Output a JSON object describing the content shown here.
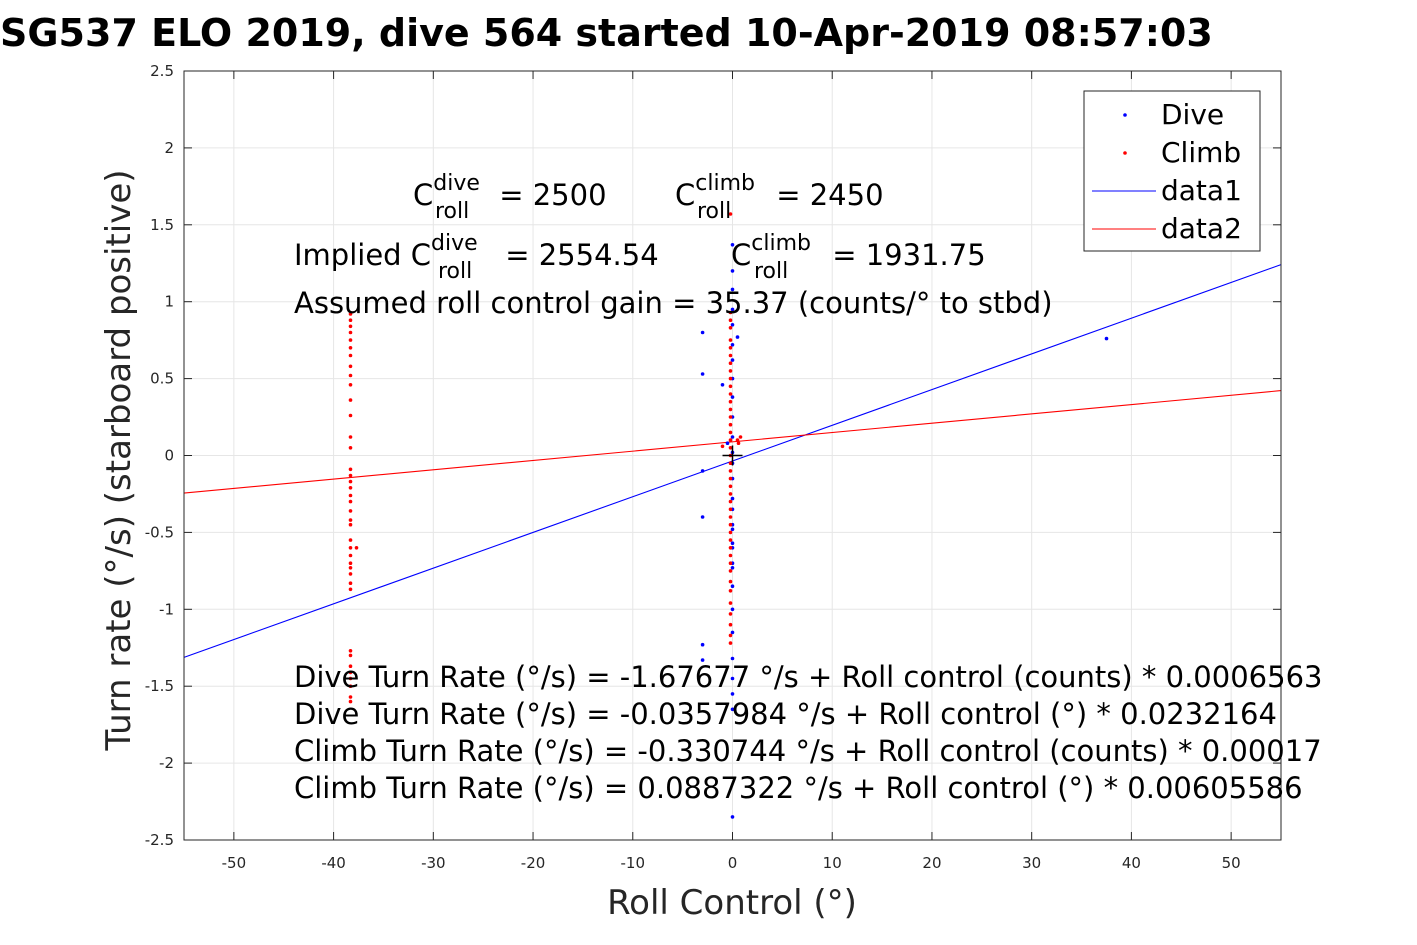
{
  "chart_data": {
    "type": "scatter",
    "title": "SG537 ELO 2019, dive 564 started 10-Apr-2019 08:57:03",
    "xlabel": "Roll Control (°)",
    "ylabel": "Turn rate (°/s) (starboard positive)",
    "xlim": [
      -55,
      55
    ],
    "ylim": [
      -2.5,
      2.5
    ],
    "xticks": [
      "-50",
      "-40",
      "-30",
      "-20",
      "-10",
      "0",
      "10",
      "20",
      "30",
      "40",
      "50"
    ],
    "yticks": [
      "2.5",
      "2",
      "1.5",
      "1",
      "0.5",
      "0",
      "-0.5",
      "-1",
      "-1.5",
      "-2",
      "-2.5"
    ],
    "grid": true,
    "legend_position": "top-right",
    "legend": [
      "Dive",
      "Climb",
      "data1",
      "data2"
    ],
    "series": [
      {
        "name": "Dive",
        "kind": "points",
        "color": "#0000ff",
        "points": [
          [
            0,
            1.37
          ],
          [
            0,
            1.2
          ],
          [
            0,
            1.08
          ],
          [
            0,
            0.95
          ],
          [
            0,
            0.85
          ],
          [
            0,
            0.72
          ],
          [
            0,
            0.62
          ],
          [
            0,
            0.5
          ],
          [
            0,
            0.38
          ],
          [
            0,
            0.25
          ],
          [
            0,
            0.12
          ],
          [
            0,
            0.02
          ],
          [
            0,
            -0.05
          ],
          [
            0,
            -0.15
          ],
          [
            0,
            -0.28
          ],
          [
            0,
            -0.35
          ],
          [
            0,
            -0.45
          ],
          [
            0,
            -0.48
          ],
          [
            0,
            -0.57
          ],
          [
            0,
            -0.6
          ],
          [
            0,
            -0.7
          ],
          [
            0,
            -0.73
          ],
          [
            0,
            -0.85
          ],
          [
            0,
            -1.0
          ],
          [
            0,
            -1.15
          ],
          [
            0,
            -1.32
          ],
          [
            0,
            -1.45
          ],
          [
            0,
            -1.55
          ],
          [
            0,
            -1.65
          ],
          [
            0,
            -2.35
          ],
          [
            -3,
            0.8
          ],
          [
            -3,
            0.53
          ],
          [
            -3,
            -0.1
          ],
          [
            -3,
            -0.4
          ],
          [
            -3,
            -1.23
          ],
          [
            -3,
            -1.33
          ],
          [
            -1,
            0.46
          ],
          [
            0.5,
            0.77
          ],
          [
            -0.5,
            0.08
          ],
          [
            37.5,
            0.76
          ]
        ]
      },
      {
        "name": "Climb",
        "kind": "points",
        "color": "#ff0000",
        "points": [
          [
            -38.3,
            0.92
          ],
          [
            -38.3,
            0.88
          ],
          [
            -38.3,
            0.84
          ],
          [
            -38.3,
            0.8
          ],
          [
            -38.3,
            0.75
          ],
          [
            -38.3,
            0.7
          ],
          [
            -38.3,
            0.65
          ],
          [
            -38.3,
            0.58
          ],
          [
            -38.3,
            0.52
          ],
          [
            -38.3,
            0.46
          ],
          [
            -38.3,
            0.36
          ],
          [
            -38.3,
            0.26
          ],
          [
            -38.3,
            0.12
          ],
          [
            -38.3,
            0.05
          ],
          [
            -38.3,
            -0.09
          ],
          [
            -38.3,
            -0.13
          ],
          [
            -38.3,
            -0.17
          ],
          [
            -38.3,
            -0.21
          ],
          [
            -38.3,
            -0.26
          ],
          [
            -38.3,
            -0.3
          ],
          [
            -38.3,
            -0.36
          ],
          [
            -38.3,
            -0.42
          ],
          [
            -38.3,
            -0.45
          ],
          [
            -38.3,
            -0.55
          ],
          [
            -38.3,
            -0.6
          ],
          [
            -38.3,
            -0.65
          ],
          [
            -38.3,
            -0.7
          ],
          [
            -38.3,
            -0.73
          ],
          [
            -38.3,
            -0.77
          ],
          [
            -38.3,
            -0.83
          ],
          [
            -38.3,
            -0.87
          ],
          [
            -38.3,
            -1.27
          ],
          [
            -38.3,
            -1.3
          ],
          [
            -38.3,
            -1.37
          ],
          [
            -38.3,
            -1.41
          ],
          [
            -38.3,
            -1.45
          ],
          [
            -38.3,
            -1.5
          ],
          [
            -38.3,
            -1.57
          ],
          [
            -38.3,
            -1.6
          ],
          [
            -37.7,
            -0.6
          ],
          [
            -0.2,
            1.57
          ],
          [
            -0.2,
            0.93
          ],
          [
            -0.2,
            0.88
          ],
          [
            -0.2,
            0.83
          ],
          [
            -0.2,
            0.75
          ],
          [
            -0.2,
            0.7
          ],
          [
            -0.2,
            0.65
          ],
          [
            -0.2,
            0.6
          ],
          [
            -0.2,
            0.55
          ],
          [
            -0.2,
            0.5
          ],
          [
            -0.2,
            0.45
          ],
          [
            -0.2,
            0.4
          ],
          [
            -0.2,
            0.35
          ],
          [
            -0.2,
            0.3
          ],
          [
            -0.2,
            0.25
          ],
          [
            -0.2,
            0.2
          ],
          [
            -0.2,
            0.15
          ],
          [
            -0.2,
            0.1
          ],
          [
            -0.2,
            0.05
          ],
          [
            -0.2,
            0.0
          ],
          [
            -0.2,
            -0.05
          ],
          [
            -0.2,
            -0.1
          ],
          [
            -0.2,
            -0.15
          ],
          [
            -0.2,
            -0.2
          ],
          [
            -0.2,
            -0.25
          ],
          [
            -0.2,
            -0.3
          ],
          [
            -0.2,
            -0.35
          ],
          [
            -0.2,
            -0.4
          ],
          [
            -0.2,
            -0.45
          ],
          [
            -0.2,
            -0.5
          ],
          [
            -0.2,
            -0.55
          ],
          [
            -0.2,
            -0.6
          ],
          [
            -0.2,
            -0.65
          ],
          [
            -0.2,
            -0.7
          ],
          [
            -0.2,
            -0.75
          ],
          [
            -0.2,
            -0.82
          ],
          [
            -0.2,
            -0.88
          ],
          [
            -0.2,
            -0.96
          ],
          [
            -0.2,
            -1.03
          ],
          [
            -0.2,
            -1.1
          ],
          [
            -0.2,
            -1.17
          ],
          [
            -0.2,
            -1.22
          ],
          [
            -1,
            0.06
          ],
          [
            0.5,
            0.1
          ],
          [
            0.8,
            0.12
          ],
          [
            0.6,
            0.08
          ]
        ]
      },
      {
        "name": "data1",
        "kind": "line",
        "color": "#0000ff",
        "points": [
          [
            -55,
            -1.3127
          ],
          [
            55,
            1.2411
          ]
        ]
      },
      {
        "name": "data2",
        "kind": "line",
        "color": "#ff0000",
        "points": [
          [
            -55,
            -0.2443
          ],
          [
            55,
            0.4218
          ]
        ]
      }
    ],
    "marker": {
      "symbol": "+",
      "at": [
        0,
        0
      ],
      "color": "#000000"
    },
    "annotations": {
      "c_dive": {
        "base": "C",
        "sup": "dive",
        "sub": "roll",
        "rest": " = 2500"
      },
      "c_climb": {
        "base": "C",
        "sup": "climb",
        "sub": "roll",
        "rest": " = 2450"
      },
      "implied_dive": {
        "prefix": "Implied C",
        "sup": "dive",
        "sub": "roll",
        "rest": " = 2554.54"
      },
      "implied_climb": {
        "base": "C",
        "sup": "climb",
        "sub": "roll",
        "rest": " = 1931.75"
      },
      "gain": "Assumed roll control gain = 35.37 (counts/° to stbd)",
      "fit_lines": [
        "Dive Turn Rate (°/s) = -1.67677 °/s + Roll control (counts) * 0.0006563",
        "Dive Turn Rate (°/s) = -0.0357984 °/s + Roll control (°) * 0.0232164",
        "Climb Turn Rate (°/s) = -0.330744 °/s + Roll control (counts) * 0.00017",
        "Climb Turn Rate (°/s) = 0.0887322 °/s + Roll control (°) * 0.00605586"
      ]
    }
  }
}
